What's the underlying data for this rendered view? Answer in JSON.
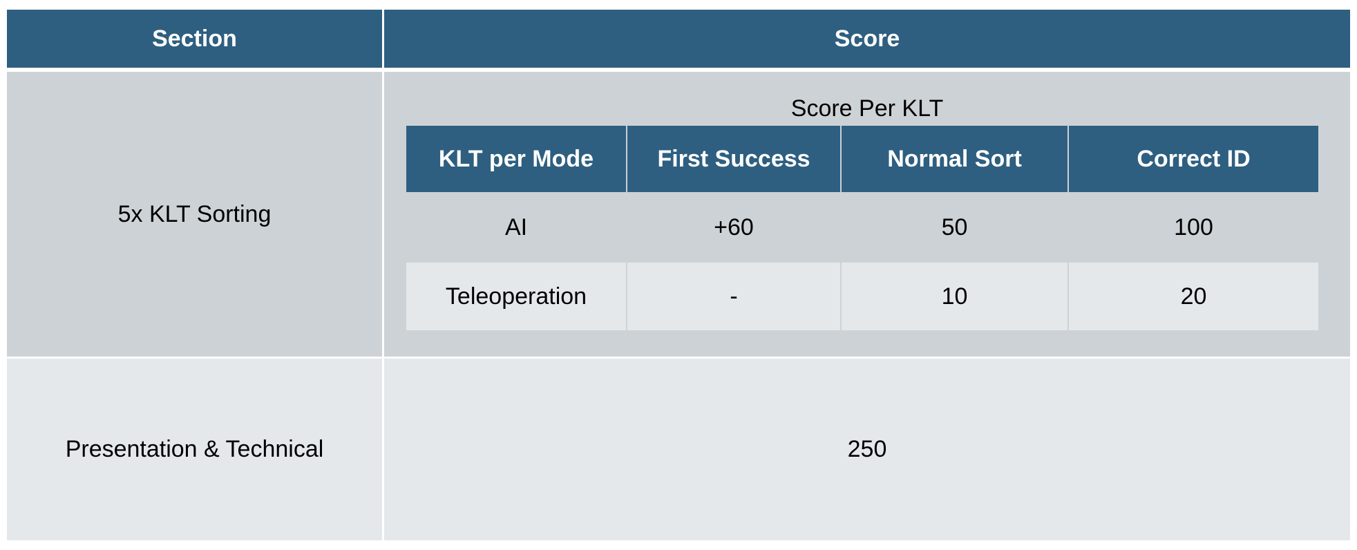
{
  "outer_table": {
    "headers": {
      "section": "Section",
      "score": "Score"
    },
    "rows": [
      {
        "section": "5x KLT Sorting",
        "score_caption": "Score Per KLT"
      },
      {
        "section": "Presentation & Technical",
        "score": "250"
      }
    ]
  },
  "inner_table": {
    "headers": [
      "KLT per Mode",
      "First Success",
      "Normal Sort",
      "Correct ID"
    ],
    "rows": [
      [
        "AI",
        "+60",
        "50",
        "100"
      ],
      [
        "Teleoperation",
        "-",
        "10",
        "20"
      ]
    ]
  },
  "colors": {
    "header": "#2e5f80",
    "row_dark": "#cdd2d6",
    "row_light": "#e4e8eb"
  }
}
